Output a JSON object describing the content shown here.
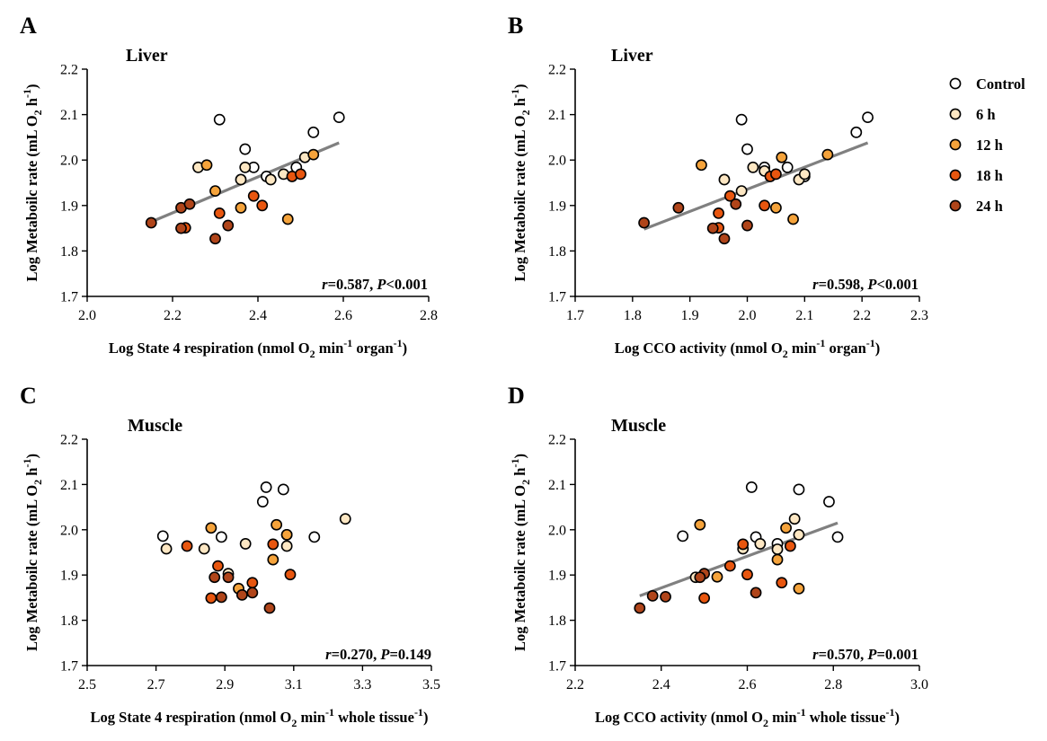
{
  "figure": {
    "legend": [
      {
        "name": "Control",
        "color": "#ffffff"
      },
      {
        "name": "6 h",
        "color": "#fde7c3"
      },
      {
        "name": "12 h",
        "color": "#f5a33b"
      },
      {
        "name": "18 h",
        "color": "#e8560f"
      },
      {
        "name": "24 h",
        "color": "#b0451a"
      }
    ],
    "trendline_color": "#808080"
  },
  "chart_data": [
    {
      "type": "scatter",
      "panel_label": "A",
      "title": "Liver",
      "xlabel": {
        "main": "Log State 4 respiration (nmol O",
        "sub": "2",
        "mid1": " min",
        "sup1": "-1",
        "mid2": " organ",
        "sup2": "-1",
        "end": ")"
      },
      "ylabel": {
        "main": "Log Metaboilc rate (mL O",
        "sub": "2",
        "mid": " h",
        "sup": "-1",
        "end": ")"
      },
      "xlim": [
        2.0,
        2.8
      ],
      "ylim": [
        1.7,
        2.2
      ],
      "xticks": [
        "2.0",
        "2.2",
        "2.4",
        "2.6",
        "2.8"
      ],
      "yticks": [
        "1.7",
        "1.8",
        "1.9",
        "2.0",
        "2.1",
        "2.2"
      ],
      "stat": {
        "r_label": "r",
        "r_value": "=0.587, ",
        "p_label": "P",
        "p_value": "<0.001"
      },
      "trendline": [
        [
          2.15,
          1.864
        ],
        [
          2.59,
          2.038
        ]
      ],
      "series": [
        {
          "name": "Control",
          "points": [
            [
              2.31,
              2.089
            ],
            [
              2.37,
              2.024
            ],
            [
              2.39,
              1.984
            ],
            [
              2.42,
              1.964
            ],
            [
              2.49,
              1.984
            ],
            [
              2.53,
              2.061
            ],
            [
              2.59,
              2.094
            ]
          ]
        },
        {
          "name": "6 h",
          "points": [
            [
              2.26,
              1.984
            ],
            [
              2.37,
              1.984
            ],
            [
              2.36,
              1.957
            ],
            [
              2.43,
              1.957
            ],
            [
              2.46,
              1.969
            ],
            [
              2.51,
              2.006
            ]
          ]
        },
        {
          "name": "12 h",
          "points": [
            [
              2.28,
              1.989
            ],
            [
              2.3,
              1.932
            ],
            [
              2.36,
              1.895
            ],
            [
              2.47,
              1.87
            ],
            [
              2.53,
              2.012
            ]
          ]
        },
        {
          "name": "18 h",
          "points": [
            [
              2.23,
              1.851
            ],
            [
              2.39,
              1.921
            ],
            [
              2.41,
              1.9
            ],
            [
              2.48,
              1.964
            ],
            [
              2.5,
              1.969
            ],
            [
              2.31,
              1.883
            ]
          ]
        },
        {
          "name": "24 h",
          "points": [
            [
              2.15,
              1.862
            ],
            [
              2.22,
              1.85
            ],
            [
              2.22,
              1.895
            ],
            [
              2.24,
              1.903
            ],
            [
              2.3,
              1.827
            ],
            [
              2.33,
              1.856
            ]
          ]
        }
      ]
    },
    {
      "type": "scatter",
      "panel_label": "B",
      "title": "Liver",
      "xlabel": {
        "main": "Log CCO activity (nmol O",
        "sub": "2",
        "mid1": " min",
        "sup1": "-1",
        "mid2": " organ",
        "sup2": "-1",
        "end": ")"
      },
      "ylabel": {
        "main": "Log Metaboilc rate (mL O",
        "sub": "2",
        "mid": " h",
        "sup": "-1",
        "end": ")"
      },
      "xlim": [
        1.7,
        2.3
      ],
      "ylim": [
        1.7,
        2.2
      ],
      "xticks": [
        "1.7",
        "1.8",
        "1.9",
        "2.0",
        "2.1",
        "2.2",
        "2.3"
      ],
      "yticks": [
        "1.7",
        "1.8",
        "1.9",
        "2.0",
        "2.1",
        "2.2"
      ],
      "stat": {
        "r_label": "r",
        "r_value": "=0.598, ",
        "p_label": "P",
        "p_value": "<0.001"
      },
      "trendline": [
        [
          1.82,
          1.848
        ],
        [
          2.21,
          2.038
        ]
      ],
      "series": [
        {
          "name": "Control",
          "points": [
            [
              1.99,
              2.089
            ],
            [
              2.0,
              2.024
            ],
            [
              2.03,
              1.984
            ],
            [
              2.07,
              1.984
            ],
            [
              2.1,
              1.964
            ],
            [
              2.19,
              2.061
            ],
            [
              2.21,
              2.094
            ]
          ]
        },
        {
          "name": "6 h",
          "points": [
            [
              1.96,
              1.957
            ],
            [
              2.01,
              1.984
            ],
            [
              2.03,
              1.976
            ],
            [
              2.09,
              1.957
            ],
            [
              2.1,
              1.969
            ],
            [
              1.99,
              1.932
            ]
          ]
        },
        {
          "name": "12 h",
          "points": [
            [
              1.92,
              1.989
            ],
            [
              2.05,
              1.895
            ],
            [
              2.06,
              2.006
            ],
            [
              2.08,
              1.87
            ],
            [
              2.14,
              2.012
            ]
          ]
        },
        {
          "name": "18 h",
          "points": [
            [
              1.95,
              1.851
            ],
            [
              1.97,
              1.921
            ],
            [
              2.03,
              1.9
            ],
            [
              2.04,
              1.964
            ],
            [
              2.05,
              1.969
            ],
            [
              1.95,
              1.883
            ]
          ]
        },
        {
          "name": "24 h",
          "points": [
            [
              1.82,
              1.862
            ],
            [
              1.88,
              1.895
            ],
            [
              1.94,
              1.85
            ],
            [
              1.96,
              1.827
            ],
            [
              2.0,
              1.856
            ],
            [
              1.98,
              1.903
            ]
          ]
        }
      ]
    },
    {
      "type": "scatter",
      "panel_label": "C",
      "title": "Muscle",
      "xlabel": {
        "main": "Log State 4 respiration (nmol O",
        "sub": "2",
        "mid1": " min",
        "sup1": "-1",
        "mid2": " whole tissue",
        "sup2": "-1",
        "end": ")"
      },
      "ylabel": {
        "main": "Log Metaboilc rate (mL O",
        "sub": "2",
        "mid": " h",
        "sup": "-1",
        "end": ")"
      },
      "xlim": [
        2.5,
        3.5
      ],
      "ylim": [
        1.7,
        2.2
      ],
      "xticks": [
        "2.5",
        "2.7",
        "2.9",
        "3.1",
        "3.3",
        "3.5"
      ],
      "yticks": [
        "1.7",
        "1.8",
        "1.9",
        "2.0",
        "2.1",
        "2.2"
      ],
      "stat": {
        "r_label": "r",
        "r_value": "=0.270, ",
        "p_label": "P",
        "p_value": "=0.149"
      },
      "trendline": null,
      "series": [
        {
          "name": "Control",
          "points": [
            [
              2.72,
              1.986
            ],
            [
              2.89,
              1.984
            ],
            [
              3.01,
              2.062
            ],
            [
              3.02,
              2.094
            ],
            [
              3.07,
              2.089
            ],
            [
              3.08,
              1.989
            ],
            [
              3.16,
              1.984
            ]
          ]
        },
        {
          "name": "6 h",
          "points": [
            [
              2.73,
              1.958
            ],
            [
              2.84,
              1.958
            ],
            [
              2.96,
              1.969
            ],
            [
              3.08,
              1.964
            ],
            [
              3.25,
              2.024
            ],
            [
              2.91,
              1.903
            ]
          ]
        },
        {
          "name": "12 h",
          "points": [
            [
              2.86,
              2.004
            ],
            [
              2.94,
              1.87
            ],
            [
              3.04,
              1.934
            ],
            [
              3.05,
              2.011
            ],
            [
              3.08,
              1.989
            ]
          ]
        },
        {
          "name": "18 h",
          "points": [
            [
              2.79,
              1.964
            ],
            [
              2.88,
              1.92
            ],
            [
              2.98,
              1.883
            ],
            [
              3.04,
              1.968
            ],
            [
              3.09,
              1.901
            ],
            [
              2.86,
              1.849
            ]
          ]
        },
        {
          "name": "24 h",
          "points": [
            [
              2.87,
              1.895
            ],
            [
              2.89,
              1.851
            ],
            [
              2.95,
              1.856
            ],
            [
              2.98,
              1.861
            ],
            [
              3.03,
              1.827
            ],
            [
              2.91,
              1.895
            ]
          ]
        }
      ]
    },
    {
      "type": "scatter",
      "panel_label": "D",
      "title": "Muscle",
      "xlabel": {
        "main": "Log CCO activity (nmol O",
        "sub": "2",
        "mid1": " min",
        "sup1": "-1",
        "mid2": " whole tissue",
        "sup2": "-1",
        "end": ")"
      },
      "ylabel": {
        "main": "Log Metaboilc rate (mL O",
        "sub": "2",
        "mid": " h",
        "sup": "-1",
        "end": ")"
      },
      "xlim": [
        2.2,
        3.0
      ],
      "ylim": [
        1.7,
        2.2
      ],
      "xticks": [
        "2.2",
        "2.4",
        "2.6",
        "2.8",
        "3.0"
      ],
      "yticks": [
        "1.7",
        "1.8",
        "1.9",
        "2.0",
        "2.1",
        "2.2"
      ],
      "stat": {
        "r_label": "r",
        "r_value": "=0.570, ",
        "p_label": "P",
        "p_value": "=0.001"
      },
      "trendline": [
        [
          2.35,
          1.854
        ],
        [
          2.81,
          2.015
        ]
      ],
      "series": [
        {
          "name": "Control",
          "points": [
            [
              2.45,
              1.986
            ],
            [
              2.61,
              2.094
            ],
            [
              2.62,
              1.984
            ],
            [
              2.67,
              1.969
            ],
            [
              2.72,
              2.089
            ],
            [
              2.79,
              2.062
            ],
            [
              2.81,
              1.984
            ]
          ]
        },
        {
          "name": "6 h",
          "points": [
            [
              2.59,
              1.958
            ],
            [
              2.63,
              1.969
            ],
            [
              2.67,
              1.957
            ],
            [
              2.71,
              2.024
            ],
            [
              2.72,
              1.989
            ],
            [
              2.48,
              1.895
            ]
          ]
        },
        {
          "name": "12 h",
          "points": [
            [
              2.49,
              2.011
            ],
            [
              2.53,
              1.896
            ],
            [
              2.67,
              1.934
            ],
            [
              2.69,
              2.004
            ],
            [
              2.72,
              1.87
            ]
          ]
        },
        {
          "name": "18 h",
          "points": [
            [
              2.5,
              1.849
            ],
            [
              2.56,
              1.92
            ],
            [
              2.6,
              1.901
            ],
            [
              2.7,
              1.964
            ],
            [
              2.59,
              1.968
            ],
            [
              2.68,
              1.883
            ]
          ]
        },
        {
          "name": "24 h",
          "points": [
            [
              2.35,
              1.827
            ],
            [
              2.38,
              1.854
            ],
            [
              2.41,
              1.852
            ],
            [
              2.5,
              1.903
            ],
            [
              2.62,
              1.861
            ],
            [
              2.49,
              1.895
            ]
          ]
        }
      ]
    }
  ]
}
